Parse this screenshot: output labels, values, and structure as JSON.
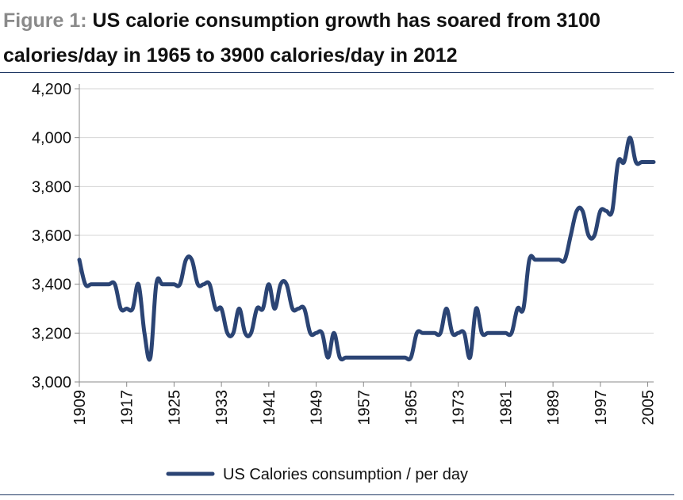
{
  "title_prefix": "Figure 1:",
  "title_text": "US calorie consumption growth has soared from 3100 calories/day in 1965 to 3900 calories/day in 2012",
  "chart_data": {
    "type": "line",
    "title": "US calorie consumption growth has soared from 3100 calories/day in 1965 to 3900 calories/day in 2012",
    "xlabel": "",
    "ylabel": "",
    "xlim": [
      1909,
      2006
    ],
    "ylim": [
      3000,
      4200
    ],
    "y_ticks": [
      "3,000",
      "3,200",
      "3,400",
      "3,600",
      "3,800",
      "4,000",
      "4,200"
    ],
    "y_tick_values": [
      3000,
      3200,
      3400,
      3600,
      3800,
      4000,
      4200
    ],
    "x_ticks": [
      "1909",
      "1917",
      "1925",
      "1933",
      "1941",
      "1949",
      "1957",
      "1965",
      "1973",
      "1981",
      "1989",
      "1997",
      "2005"
    ],
    "x_tick_values": [
      1909,
      1917,
      1925,
      1933,
      1941,
      1949,
      1957,
      1965,
      1973,
      1981,
      1989,
      1997,
      2005
    ],
    "grid": true,
    "legend_position": "bottom-center",
    "line_color": "#2b4474",
    "series": [
      {
        "name": "US Calories consumption / per day",
        "x": [
          1909,
          1910,
          1911,
          1912,
          1913,
          1914,
          1915,
          1916,
          1917,
          1918,
          1919,
          1920,
          1921,
          1922,
          1923,
          1924,
          1925,
          1926,
          1927,
          1928,
          1929,
          1930,
          1931,
          1932,
          1933,
          1934,
          1935,
          1936,
          1937,
          1938,
          1939,
          1940,
          1941,
          1942,
          1943,
          1944,
          1945,
          1946,
          1947,
          1948,
          1949,
          1950,
          1951,
          1952,
          1953,
          1954,
          1955,
          1956,
          1957,
          1958,
          1959,
          1960,
          1961,
          1962,
          1963,
          1964,
          1965,
          1966,
          1967,
          1968,
          1969,
          1970,
          1971,
          1972,
          1973,
          1974,
          1975,
          1976,
          1977,
          1978,
          1979,
          1980,
          1981,
          1982,
          1983,
          1984,
          1985,
          1986,
          1987,
          1988,
          1989,
          1990,
          1991,
          1992,
          1993,
          1994,
          1995,
          1996,
          1997,
          1998,
          1999,
          2000,
          2001,
          2002,
          2003,
          2004,
          2005,
          2006
        ],
        "values": [
          3500,
          3400,
          3400,
          3400,
          3400,
          3400,
          3400,
          3300,
          3300,
          3300,
          3400,
          3200,
          3100,
          3400,
          3400,
          3400,
          3400,
          3400,
          3500,
          3500,
          3400,
          3400,
          3400,
          3300,
          3300,
          3200,
          3200,
          3300,
          3200,
          3200,
          3300,
          3300,
          3400,
          3300,
          3400,
          3400,
          3300,
          3300,
          3300,
          3200,
          3200,
          3200,
          3100,
          3200,
          3100,
          3100,
          3100,
          3100,
          3100,
          3100,
          3100,
          3100,
          3100,
          3100,
          3100,
          3100,
          3100,
          3200,
          3200,
          3200,
          3200,
          3200,
          3300,
          3200,
          3200,
          3200,
          3100,
          3300,
          3200,
          3200,
          3200,
          3200,
          3200,
          3200,
          3300,
          3300,
          3500,
          3500,
          3500,
          3500,
          3500,
          3500,
          3500,
          3600,
          3700,
          3700,
          3600,
          3600,
          3700,
          3700,
          3700,
          3900,
          3900,
          4000,
          3900,
          3900,
          3900,
          3900
        ]
      }
    ]
  }
}
